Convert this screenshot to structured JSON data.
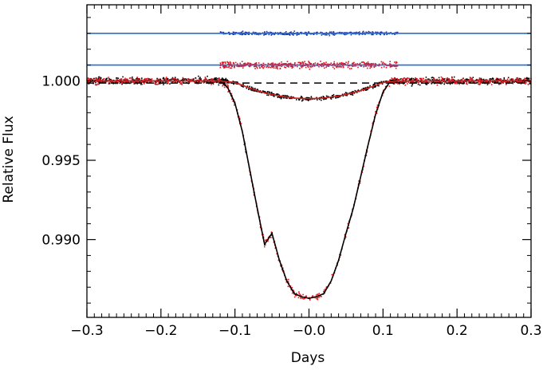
{
  "chart_data": {
    "type": "scatter",
    "title": "",
    "xlabel": "Days",
    "ylabel": "Relative Flux",
    "xlim": [
      -0.3,
      0.3
    ],
    "ylim": [
      0.9851,
      1.0048
    ],
    "x_ticks": [
      -0.3,
      -0.2,
      -0.1,
      0.0,
      0.1,
      0.2,
      0.3
    ],
    "x_tick_labels": [
      "−0.3",
      "−0.2",
      "−0.1",
      "−0.0",
      "0.1",
      "0.2",
      "0.3"
    ],
    "y_ticks": [
      0.99,
      0.995,
      1.0
    ],
    "y_tick_labels": [
      "0.990",
      "0.995",
      "1.000"
    ],
    "grid": false,
    "colors": {
      "black_points": "#000000",
      "red_points": "#e8141c",
      "blue_points": "#1f3a9e",
      "model_line": "#000000",
      "red_model_line": "#d42020",
      "reference_line": "#1f6fe0",
      "dashed_line": "#000000"
    },
    "reference_lines": [
      {
        "name": "residual-level-upper",
        "y": 1.003,
        "style": "solid",
        "color": "#1f6fe0"
      },
      {
        "name": "residual-level-lower",
        "y": 1.001,
        "style": "solid",
        "color": "#1f6fe0"
      },
      {
        "name": "secondary-depth",
        "y": 0.99987,
        "style": "dashed",
        "color": "#000000"
      }
    ],
    "series": [
      {
        "name": "primary-transit-model",
        "kind": "line",
        "color": "#000000",
        "x": [
          -0.3,
          -0.12,
          -0.11,
          -0.1,
          -0.09,
          -0.08,
          -0.07,
          -0.06,
          -0.05,
          -0.04,
          -0.03,
          -0.02,
          -0.01,
          0.0,
          0.01,
          0.02,
          0.03,
          0.04,
          0.05,
          0.06,
          0.07,
          0.08,
          0.09,
          0.1,
          0.11,
          0.12,
          0.3
        ],
        "y": [
          1.0,
          1.0,
          0.9996,
          0.9986,
          0.9968,
          0.9944,
          0.992,
          0.9897,
          0.9904,
          0.9887,
          0.9874,
          0.9866,
          0.9864,
          0.9863,
          0.9864,
          0.9866,
          0.9874,
          0.9887,
          0.9904,
          0.992,
          0.994,
          0.996,
          0.9979,
          0.9993,
          1.0,
          1.0,
          1.0
        ]
      },
      {
        "name": "secondary-eclipse-model",
        "kind": "line",
        "color": "#d42020",
        "x": [
          -0.3,
          -0.12,
          -0.1,
          -0.08,
          -0.06,
          -0.04,
          -0.02,
          0.0,
          0.02,
          0.04,
          0.06,
          0.08,
          0.1,
          0.12,
          0.3
        ],
        "y": [
          1.0,
          1.0,
          0.9999,
          0.99955,
          0.99925,
          0.99905,
          0.99892,
          0.99888,
          0.99892,
          0.99905,
          0.99925,
          0.99955,
          0.9999,
          1.0,
          1.0
        ]
      },
      {
        "name": "out-of-transit-data",
        "kind": "points",
        "color": "#000000",
        "x_range": [
          -0.3,
          0.3
        ],
        "baseline": 1.0,
        "scatter": 0.0002
      },
      {
        "name": "primary-transit-data",
        "kind": "points",
        "color": "#e8141c",
        "x_range": [
          -0.3,
          0.3
        ],
        "follows": "primary-transit-model",
        "scatter": 0.0002
      },
      {
        "name": "secondary-eclipse-data",
        "kind": "points",
        "color": "#000000",
        "x_range": [
          -0.12,
          0.12
        ],
        "follows": "secondary-eclipse-model",
        "scatter": 0.00012
      },
      {
        "name": "residuals-red",
        "kind": "points",
        "color": "#e8141c",
        "x_range": [
          -0.12,
          0.12
        ],
        "baseline": 1.001,
        "scatter": 0.0002
      },
      {
        "name": "residuals-blue",
        "kind": "points",
        "color": "#1f3a9e",
        "x_range": [
          -0.12,
          0.12
        ],
        "baseline": 1.003,
        "scatter": 0.0001
      }
    ]
  }
}
